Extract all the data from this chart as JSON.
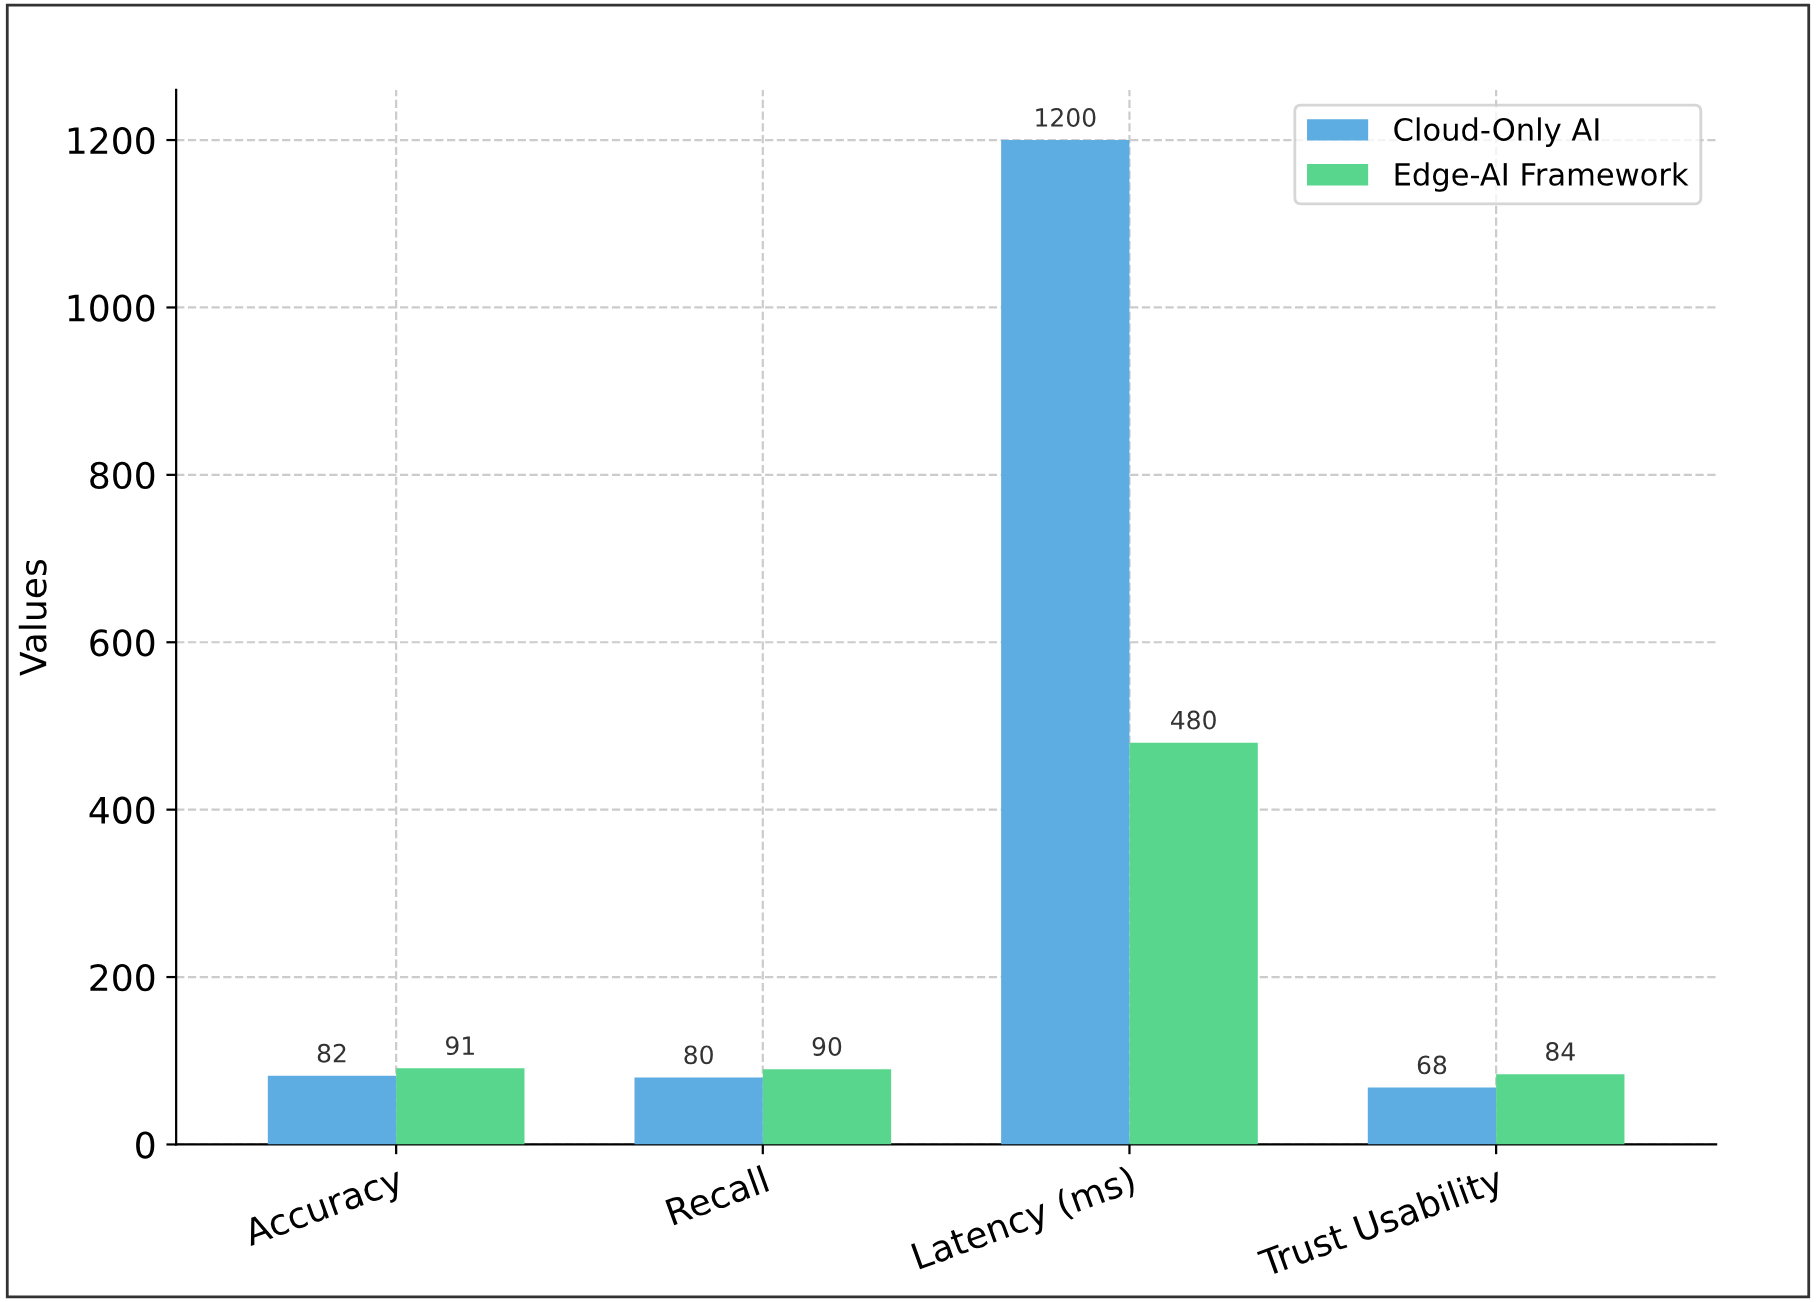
{
  "chart_data": {
    "type": "bar",
    "ylabel": "Values",
    "categories": [
      "Accuracy",
      "Recall",
      "Latency (ms)",
      "Trust Usability"
    ],
    "series": [
      {
        "name": "Cloud-Only AI",
        "color": "#5dade2",
        "values": [
          82,
          80,
          1200,
          68
        ]
      },
      {
        "name": "Edge-AI Framework",
        "color": "#58d68d",
        "values": [
          91,
          90,
          480,
          84
        ]
      }
    ],
    "ylim": [
      0,
      1260
    ],
    "yticks": [
      0,
      200,
      400,
      600,
      800,
      1000,
      1200
    ],
    "grid": true,
    "legend": "top right",
    "data_labels": true
  }
}
